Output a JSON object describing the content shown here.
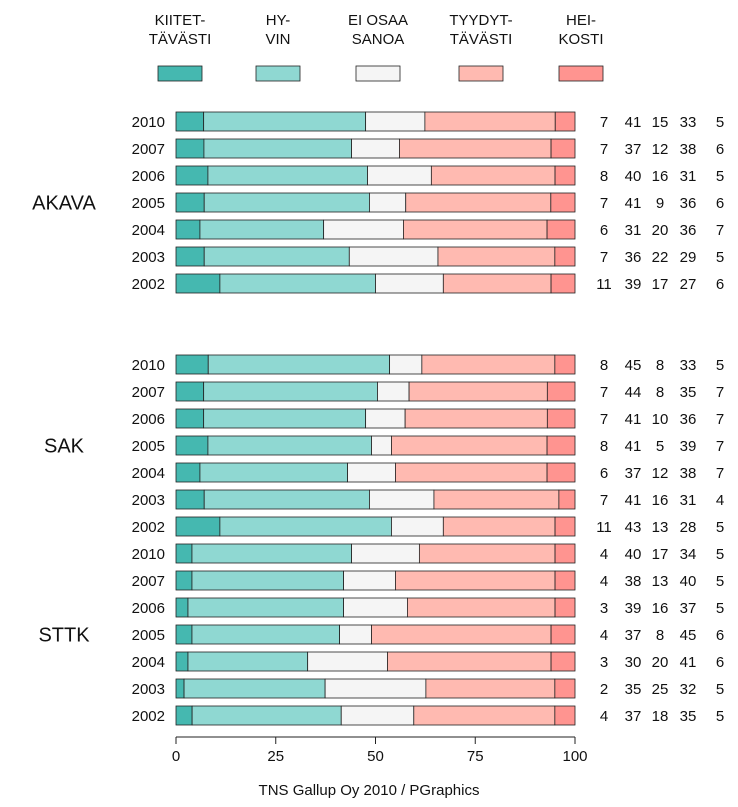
{
  "chart_data": {
    "type": "bar",
    "stacked": true,
    "orientation": "horizontal",
    "legend_placement": "top",
    "xlim": [
      0,
      100
    ],
    "x_ticks": [
      "0",
      "25",
      "50",
      "75",
      "100"
    ],
    "series": [
      {
        "name_lines": [
          "KIITET-",
          "TÄVÄSTI"
        ],
        "color": "#45b8b0"
      },
      {
        "name_lines": [
          "HY-",
          "VIN"
        ],
        "color": "#8fd8d2"
      },
      {
        "name_lines": [
          "EI OSAA",
          "SANOA"
        ],
        "color": "#f5f5f5"
      },
      {
        "name_lines": [
          "TYYDYT-",
          "TÄVÄSTI"
        ],
        "color": "#ffbab1"
      },
      {
        "name_lines": [
          "HEI-",
          "KOSTI"
        ],
        "color": "#ff9490"
      }
    ],
    "groups": [
      {
        "name": "AKAVA",
        "rows": [
          {
            "year": "2010",
            "values": [
              7,
              41,
              15,
              33,
              5
            ]
          },
          {
            "year": "2007",
            "values": [
              7,
              37,
              12,
              38,
              6
            ]
          },
          {
            "year": "2006",
            "values": [
              8,
              40,
              16,
              31,
              5
            ]
          },
          {
            "year": "2005",
            "values": [
              7,
              41,
              9,
              36,
              6
            ]
          },
          {
            "year": "2004",
            "values": [
              6,
              31,
              20,
              36,
              7
            ]
          },
          {
            "year": "2003",
            "values": [
              7,
              36,
              22,
              29,
              5
            ]
          },
          {
            "year": "2002",
            "values": [
              11,
              39,
              17,
              27,
              6
            ]
          }
        ]
      },
      {
        "name": "SAK",
        "rows": [
          {
            "year": "2010",
            "values": [
              8,
              45,
              8,
              33,
              5
            ]
          },
          {
            "year": "2007",
            "values": [
              7,
              44,
              8,
              35,
              7
            ]
          },
          {
            "year": "2006",
            "values": [
              7,
              41,
              10,
              36,
              7
            ]
          },
          {
            "year": "2005",
            "values": [
              8,
              41,
              5,
              39,
              7
            ]
          },
          {
            "year": "2004",
            "values": [
              6,
              37,
              12,
              38,
              7
            ]
          },
          {
            "year": "2003",
            "values": [
              7,
              41,
              16,
              31,
              4
            ]
          },
          {
            "year": "2002",
            "values": [
              11,
              43,
              13,
              28,
              5
            ]
          }
        ]
      },
      {
        "name": "STTK",
        "rows": [
          {
            "year": "2010",
            "values": [
              4,
              40,
              17,
              34,
              5
            ]
          },
          {
            "year": "2007",
            "values": [
              4,
              38,
              13,
              40,
              5
            ]
          },
          {
            "year": "2006",
            "values": [
              3,
              39,
              16,
              37,
              5
            ]
          },
          {
            "year": "2005",
            "values": [
              4,
              37,
              8,
              45,
              6
            ]
          },
          {
            "year": "2004",
            "values": [
              3,
              30,
              20,
              41,
              6
            ]
          },
          {
            "year": "2003",
            "values": [
              2,
              35,
              25,
              32,
              5
            ]
          },
          {
            "year": "2002",
            "values": [
              4,
              37,
              18,
              35,
              5
            ]
          }
        ]
      }
    ],
    "source": "TNS Gallup Oy  2010 / PGraphics"
  }
}
